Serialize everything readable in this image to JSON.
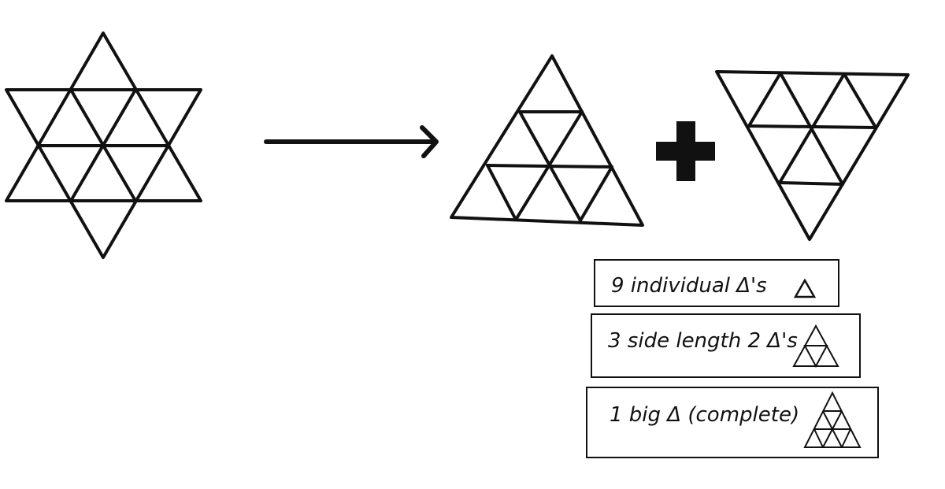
{
  "diagram": {
    "stroke_color": "#111111",
    "background": "#ffffff"
  },
  "legend": [
    {
      "text": "9 individual Δ's"
    },
    {
      "text": "3 side length 2 Δ's"
    },
    {
      "text": "1 big Δ (complete)"
    }
  ]
}
